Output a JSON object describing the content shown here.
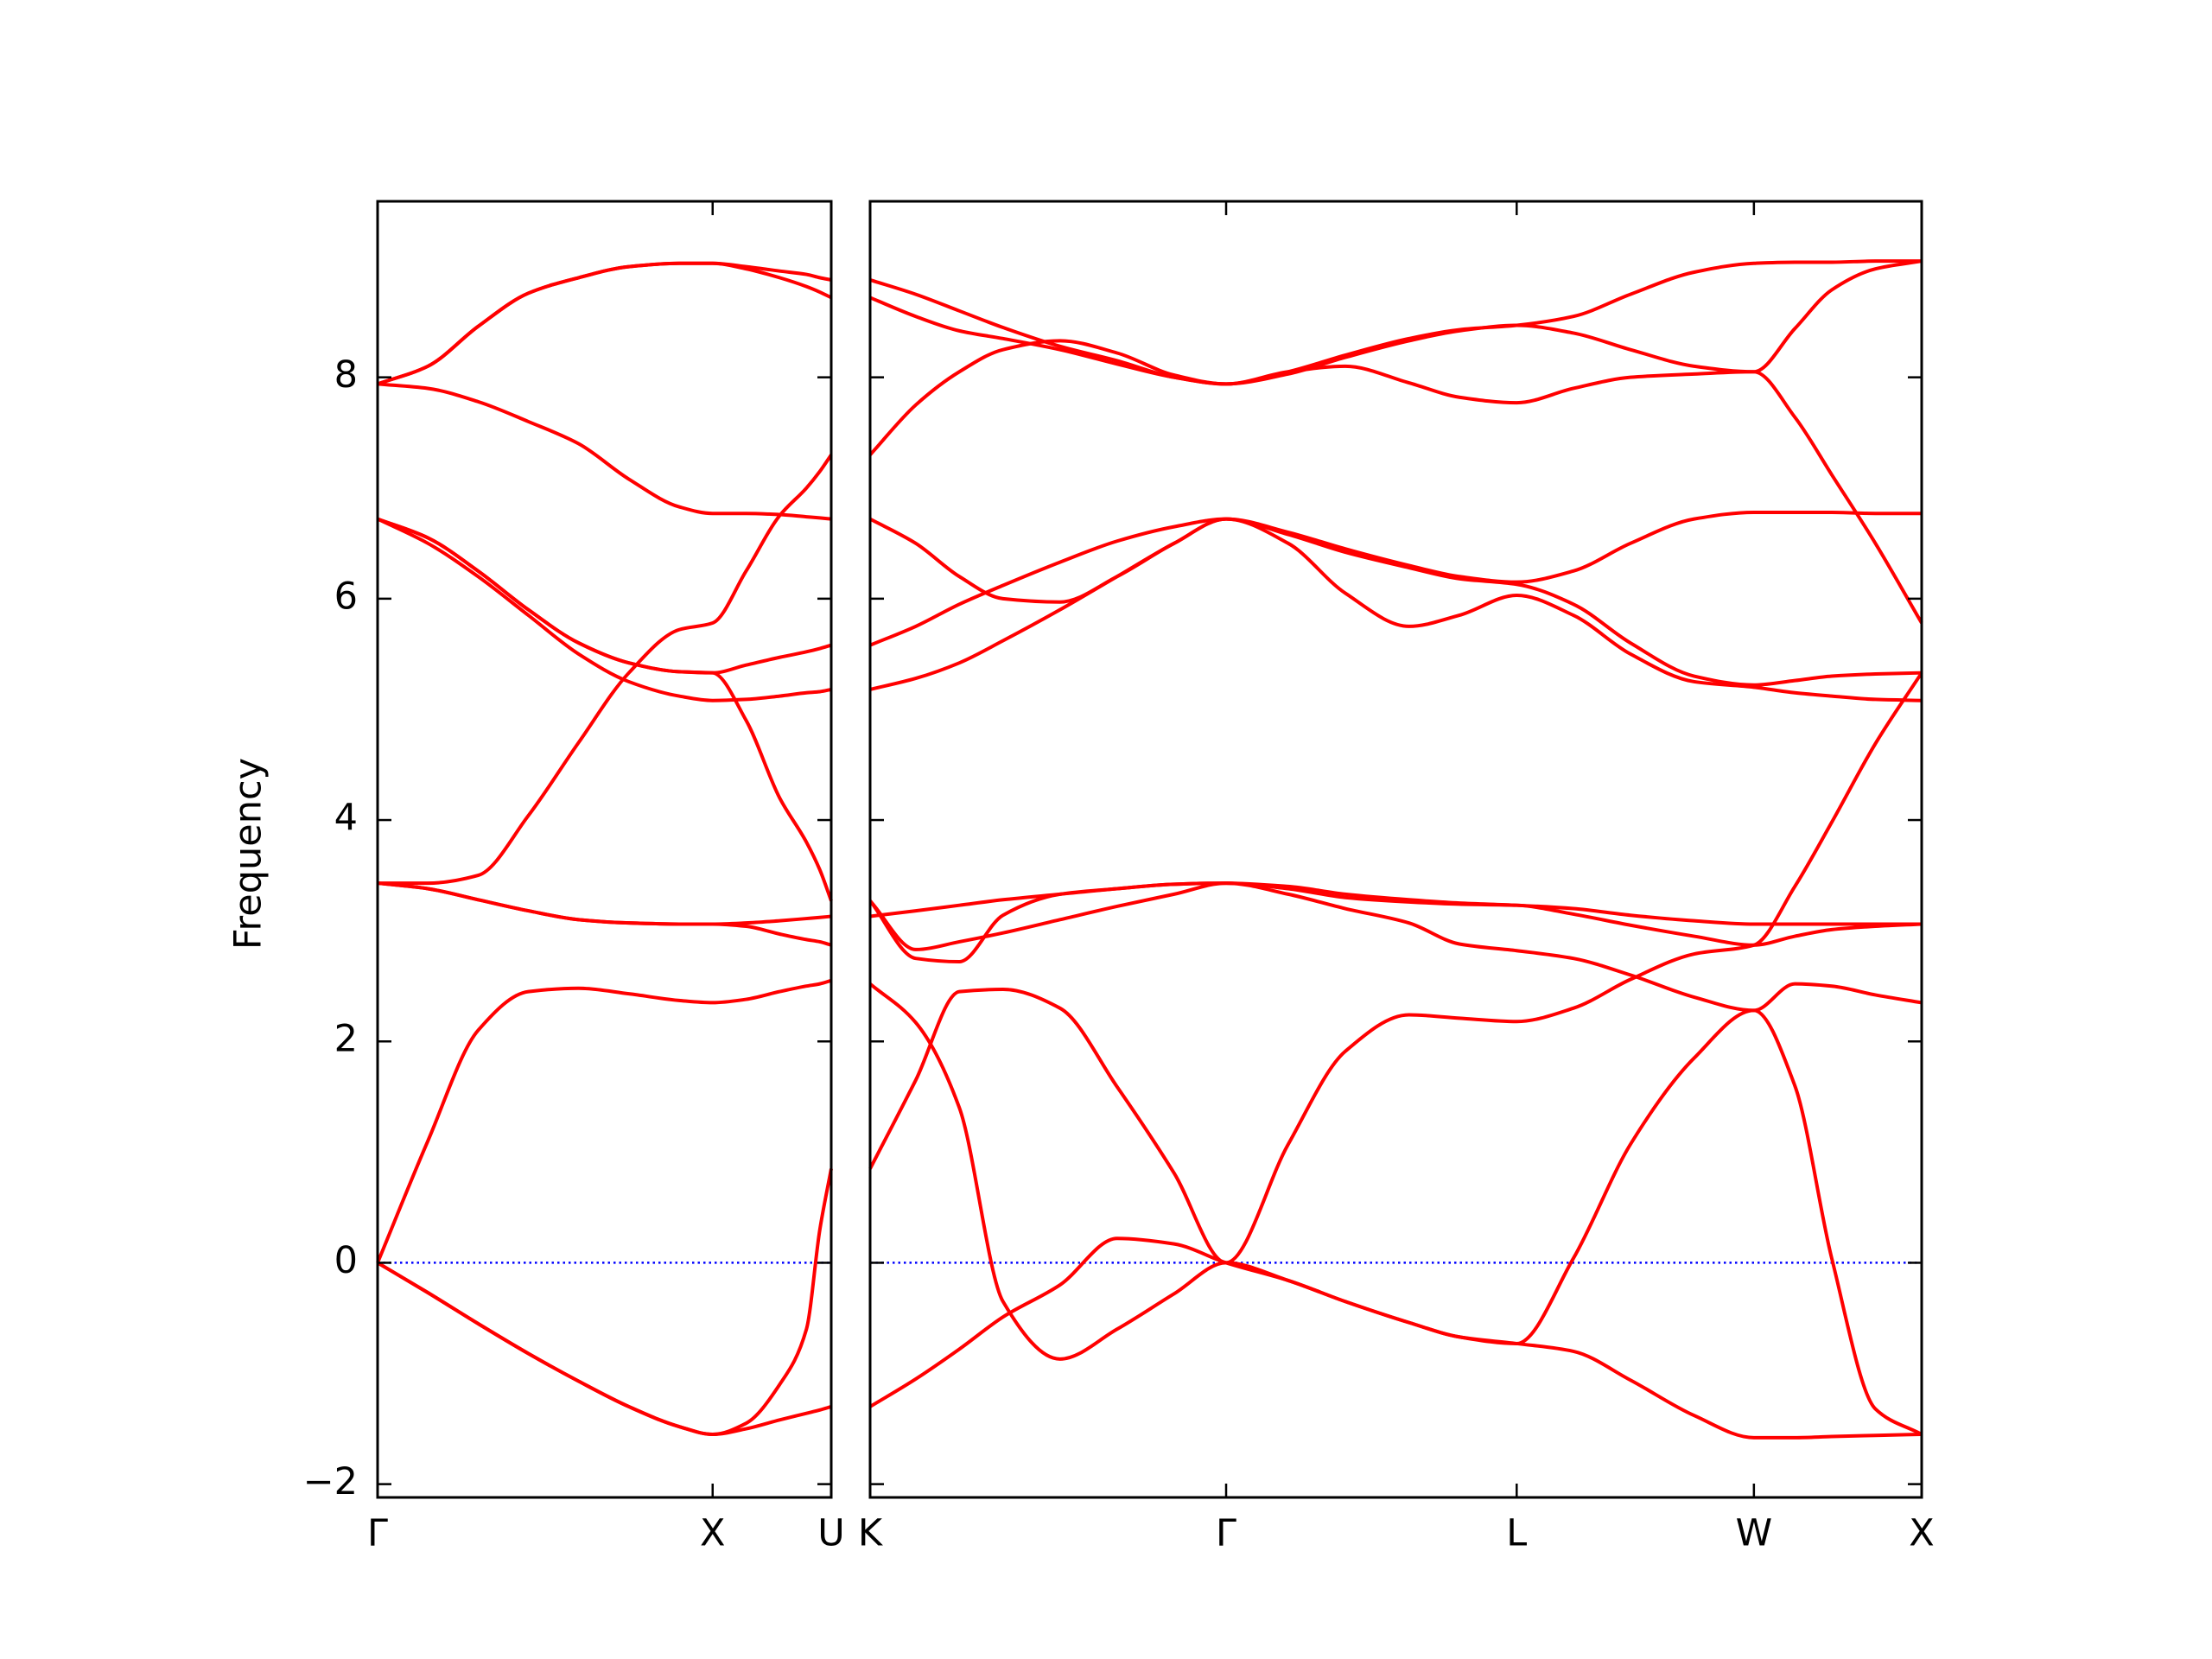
{
  "chart_data": [
    {
      "type": "line",
      "ylabel": "Frequency",
      "color": "#ff0000",
      "xlim": [
        0,
        1.354
      ],
      "ylim": [
        -2.12,
        9.59
      ],
      "xticks": [
        {
          "value": 0,
          "label": "Γ"
        },
        {
          "value": 1,
          "label": "X"
        },
        {
          "value": 1.354,
          "label": "U"
        }
      ],
      "yticks": [
        {
          "value": -2,
          "label": "−2"
        },
        0,
        2,
        4,
        6,
        8
      ],
      "hline": {
        "y": 0,
        "color": "#0000ff",
        "style": "dotted"
      },
      "x": [
        0,
        0.15,
        0.3,
        0.45,
        0.6,
        0.75,
        0.9,
        1.0,
        1.1,
        1.2,
        1.28,
        1.32,
        1.354
      ],
      "series": [
        {
          "values": [
            0,
            -0.27,
            -0.55,
            -0.82,
            -1.07,
            -1.3,
            -1.48,
            -1.55,
            -1.5,
            -1.42,
            -1.36,
            -1.33,
            -1.3
          ]
        },
        {
          "values": [
            0,
            -0.27,
            -0.55,
            -0.82,
            -1.07,
            -1.3,
            -1.48,
            -1.55,
            -1.45,
            -1.1,
            -0.6,
            0.3,
            0.85
          ]
        },
        {
          "values": [
            0,
            1.1,
            2.1,
            2.45,
            2.48,
            2.43,
            2.37,
            2.35,
            2.38,
            2.45,
            2.5,
            2.52,
            2.55
          ]
        },
        {
          "values": [
            3.43,
            3.43,
            3.5,
            4.04,
            4.7,
            5.33,
            5.72,
            5.78,
            6.25,
            6.75,
            7.0,
            7.15,
            7.3
          ]
        },
        {
          "values": [
            3.43,
            3.38,
            3.28,
            3.18,
            3.1,
            3.07,
            3.06,
            3.06,
            3.04,
            2.97,
            2.92,
            2.9,
            2.87
          ]
        },
        {
          "values": [
            3.43,
            3.38,
            3.28,
            3.18,
            3.1,
            3.07,
            3.06,
            3.06,
            3.07,
            3.09,
            3.11,
            3.12,
            3.13
          ]
        },
        {
          "values": [
            6.72,
            6.5,
            6.2,
            5.85,
            5.5,
            5.25,
            5.12,
            5.08,
            5.09,
            5.12,
            5.15,
            5.16,
            5.18
          ]
        },
        {
          "values": [
            6.72,
            6.55,
            6.25,
            5.9,
            5.6,
            5.42,
            5.34,
            5.33,
            5.4,
            5.47,
            5.52,
            5.55,
            5.58
          ]
        },
        {
          "values": [
            6.72,
            6.55,
            6.25,
            5.9,
            5.6,
            5.42,
            5.34,
            5.33,
            4.9,
            4.2,
            3.8,
            3.55,
            3.27
          ]
        },
        {
          "values": [
            7.94,
            7.9,
            7.78,
            7.6,
            7.4,
            7.08,
            6.83,
            6.77,
            6.77,
            6.76,
            6.74,
            6.73,
            6.72
          ]
        },
        {
          "values": [
            7.94,
            8.1,
            8.46,
            8.76,
            8.9,
            9.0,
            9.03,
            9.03,
            9.0,
            8.96,
            8.93,
            8.9,
            8.88
          ]
        },
        {
          "values": [
            7.94,
            8.1,
            8.46,
            8.76,
            8.9,
            9.0,
            9.03,
            9.03,
            8.98,
            8.9,
            8.82,
            8.77,
            8.72
          ]
        }
      ]
    },
    {
      "type": "line",
      "color": "#ff0000",
      "xlim": [
        1.354,
        4.488
      ],
      "ylim": [
        -2.12,
        9.59
      ],
      "xticks": [
        {
          "value": 1.354,
          "label": "K"
        },
        {
          "value": 2.415,
          "label": "Γ"
        },
        {
          "value": 3.281,
          "label": "L"
        },
        {
          "value": 3.988,
          "label": "W"
        },
        {
          "value": 4.488,
          "label": "X"
        }
      ],
      "yticks": [
        -2,
        0,
        2,
        4,
        6,
        8
      ],
      "ytick_labels": false,
      "hline": {
        "y": 0,
        "color": "#0000ff",
        "style": "dotted"
      },
      "x": [
        1.354,
        1.49,
        1.62,
        1.75,
        1.92,
        2.09,
        2.26,
        2.415,
        2.6,
        2.77,
        2.96,
        3.11,
        3.281,
        3.45,
        3.62,
        3.81,
        3.988,
        4.11,
        4.22,
        4.35,
        4.488
      ],
      "series": [
        {
          "values": [
            -1.3,
            -1.05,
            -0.78,
            -0.49,
            -0.2,
            0.22,
            0.17,
            0,
            -0.16,
            -0.35,
            -0.54,
            -0.67,
            -0.73,
            -0.8,
            -1.06,
            -1.38,
            -1.58,
            -1.58,
            -1.57,
            -1.56,
            -1.55
          ]
        },
        {
          "values": [
            2.52,
            2.17,
            1.4,
            -0.35,
            -0.87,
            -0.6,
            -0.28,
            0,
            -0.16,
            -0.35,
            -0.54,
            -0.67,
            -0.73,
            0.04,
            1.07,
            1.85,
            2.28,
            1.6,
            0.04,
            -1.32,
            -1.55
          ]
        },
        {
          "values": [
            0.85,
            1.65,
            2.45,
            2.47,
            2.3,
            1.59,
            0.81,
            0,
            1.07,
            1.91,
            2.24,
            2.21,
            2.18,
            2.3,
            2.56,
            2.79,
            2.87,
            3.4,
            3.98,
            4.69,
            5.33
          ]
        },
        {
          "values": [
            3.27,
            2.83,
            2.9,
            2.98,
            3.1,
            3.22,
            3.33,
            3.43,
            3.33,
            3.2,
            3.07,
            2.88,
            2.82,
            2.75,
            2.6,
            2.4,
            2.28,
            2.52,
            2.5,
            2.42,
            2.35
          ]
        },
        {
          "values": [
            3.27,
            2.75,
            2.72,
            3.14,
            3.33,
            3.38,
            3.42,
            3.43,
            3.38,
            3.3,
            3.26,
            3.24,
            3.23,
            3.15,
            3.05,
            2.95,
            2.87,
            2.95,
            3.01,
            3.04,
            3.06
          ]
        },
        {
          "values": [
            3.13,
            3.18,
            3.23,
            3.28,
            3.33,
            3.38,
            3.42,
            3.43,
            3.4,
            3.33,
            3.28,
            3.25,
            3.23,
            3.2,
            3.14,
            3.09,
            3.06,
            3.06,
            3.06,
            3.06,
            3.06
          ]
        },
        {
          "values": [
            5.18,
            5.28,
            5.42,
            5.62,
            5.9,
            6.2,
            6.5,
            6.72,
            6.5,
            6.05,
            5.75,
            5.85,
            6.03,
            5.85,
            5.5,
            5.25,
            5.2,
            5.15,
            5.12,
            5.09,
            5.08
          ]
        },
        {
          "values": [
            5.58,
            5.75,
            5.95,
            6.12,
            6.33,
            6.52,
            6.65,
            6.72,
            6.58,
            6.42,
            6.28,
            6.18,
            6.13,
            5.95,
            5.6,
            5.3,
            5.22,
            5.26,
            5.3,
            5.32,
            5.33
          ]
        },
        {
          "values": [
            6.72,
            6.5,
            6.2,
            6.0,
            5.97,
            6.2,
            6.5,
            6.72,
            6.6,
            6.45,
            6.3,
            6.2,
            6.15,
            6.25,
            6.5,
            6.72,
            6.78,
            6.78,
            6.78,
            6.77,
            6.77
          ]
        },
        {
          "values": [
            7.3,
            7.75,
            8.05,
            8.25,
            8.33,
            8.22,
            8.02,
            7.94,
            8.05,
            8.1,
            7.95,
            7.82,
            7.77,
            7.9,
            8.0,
            8.03,
            8.05,
            7.64,
            7.12,
            6.5,
            5.78
          ]
        },
        {
          "values": [
            8.72,
            8.55,
            8.42,
            8.35,
            8.25,
            8.12,
            8.0,
            7.94,
            8.03,
            8.18,
            8.33,
            8.42,
            8.47,
            8.4,
            8.25,
            8.1,
            8.05,
            8.44,
            8.79,
            8.98,
            9.05
          ]
        },
        {
          "values": [
            8.88,
            8.75,
            8.6,
            8.45,
            8.28,
            8.15,
            8.0,
            7.94,
            8.05,
            8.2,
            8.35,
            8.43,
            8.47,
            8.55,
            8.75,
            8.95,
            9.03,
            9.04,
            9.04,
            9.05,
            9.05
          ]
        }
      ]
    }
  ]
}
